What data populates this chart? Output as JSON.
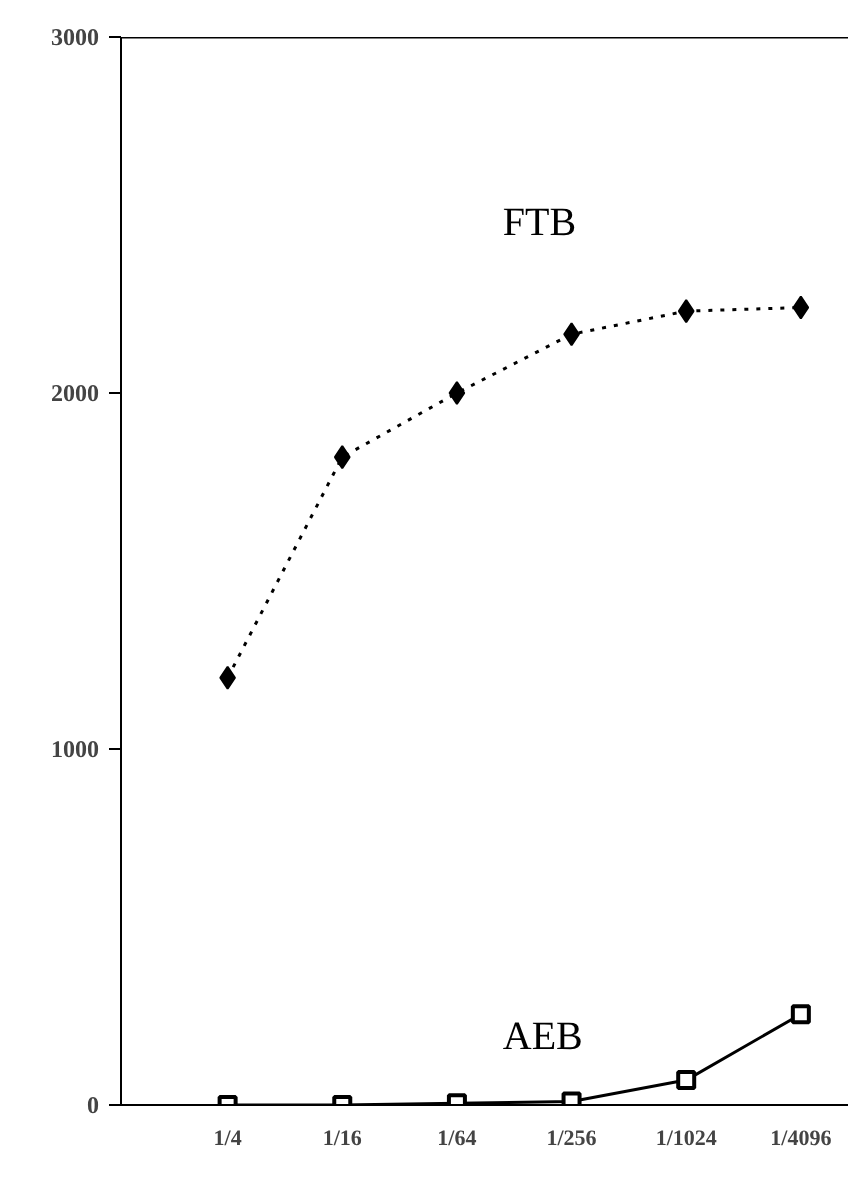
{
  "chart_data": {
    "type": "line",
    "categories": [
      "1/4",
      "1/16",
      "1/64",
      "1/256",
      "1/1024",
      "1/4096"
    ],
    "series": [
      {
        "name": "FTB",
        "color": "#000000",
        "values": [
          1200,
          1820,
          2000,
          2165,
          2230,
          2240
        ],
        "marker": "diamond",
        "line_style": "dotted"
      },
      {
        "name": "AEB",
        "color": "#000000",
        "values": [
          0,
          0,
          5,
          10,
          70,
          255
        ],
        "marker": "square",
        "line_style": "solid"
      }
    ],
    "ylim": [
      0,
      3000
    ],
    "yticks": [
      0,
      1000,
      2000,
      3000
    ],
    "grid": false
  }
}
